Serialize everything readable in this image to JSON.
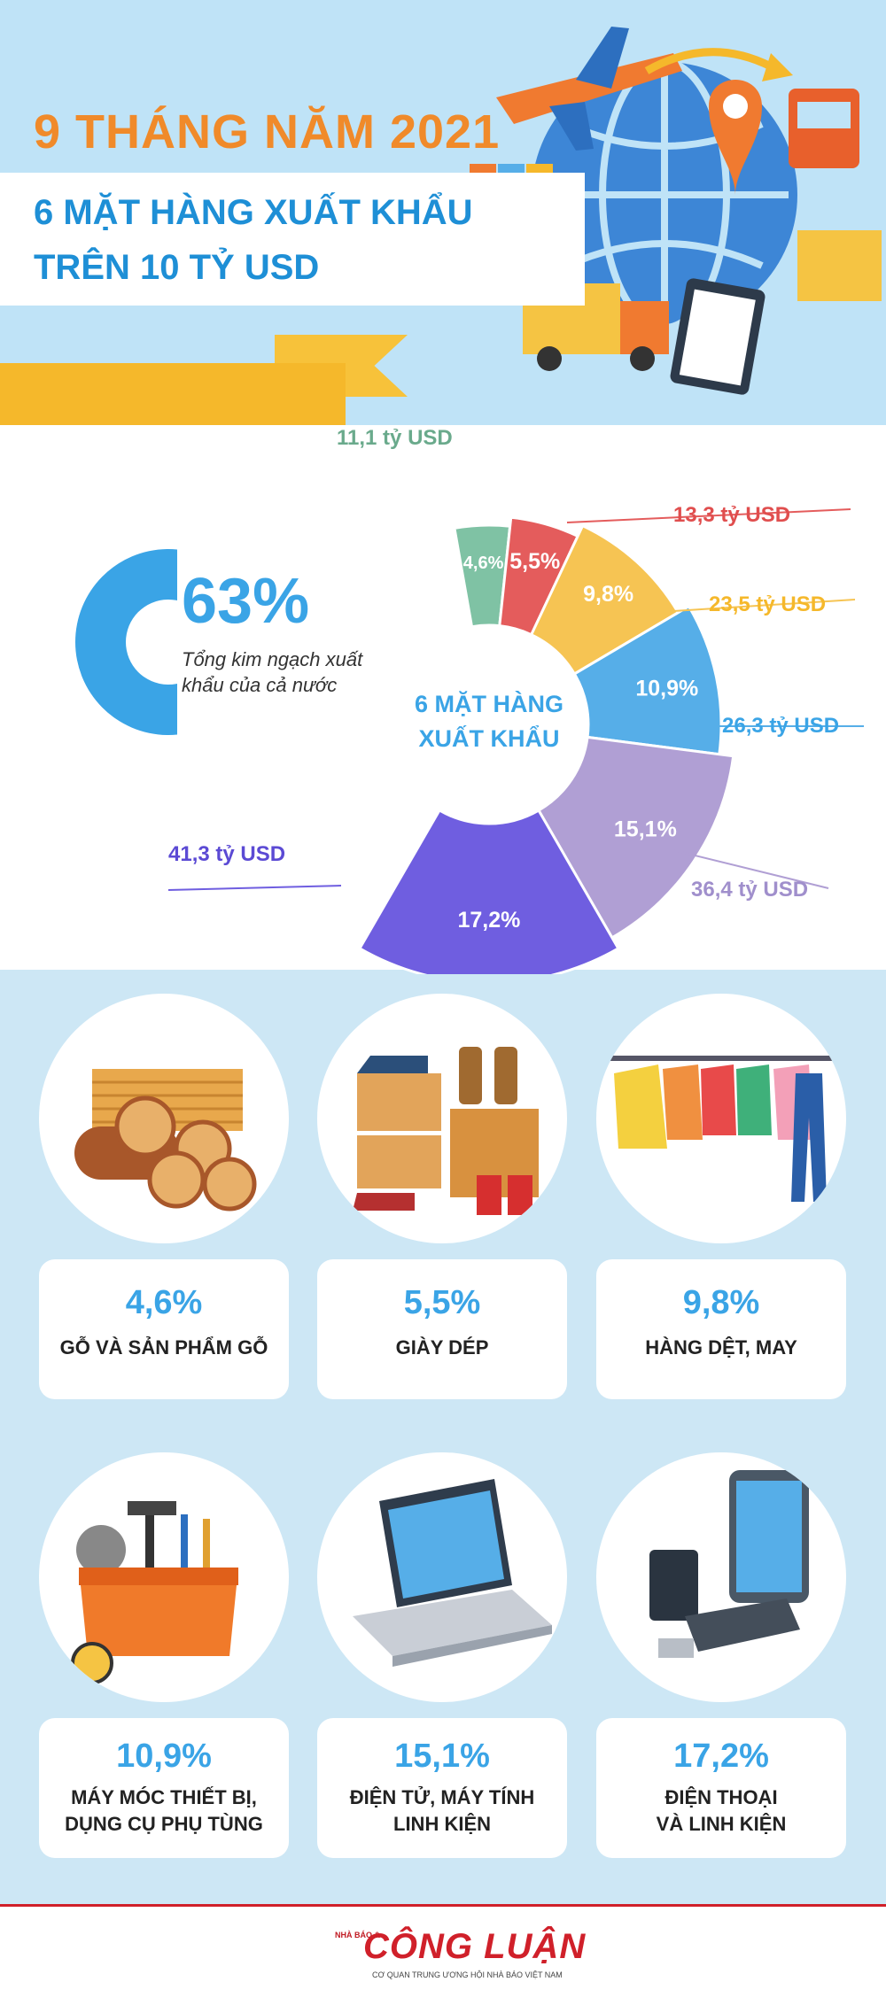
{
  "header": {
    "year_title": "9 THÁNG NĂM 2021",
    "main_title_1": "6 MẶT HÀNG XUẤT KHẨU",
    "main_title_2": "TRÊN 10 TỶ USD"
  },
  "share": {
    "percent": "63%",
    "value": 63,
    "description": "Tổng kim ngạch xuất khẩu của cả nước"
  },
  "donut_center_1": "6 MẶT HÀNG",
  "donut_center_2": "XUẤT KHẨU",
  "chart_data": {
    "type": "pie",
    "title": "",
    "slices": [
      {
        "pct_label": "4,6%",
        "pct": 4.6,
        "value_label": "11,1 tỷ USD",
        "value": 11.1,
        "color": "#7fc2a4"
      },
      {
        "pct_label": "5,5%",
        "pct": 5.5,
        "value_label": "13,3 tỷ USD",
        "value": 13.3,
        "color": "#e45c5c"
      },
      {
        "pct_label": "9,8%",
        "pct": 9.8,
        "value_label": "23,5 tỷ USD",
        "value": 23.5,
        "color": "#f6c453"
      },
      {
        "pct_label": "10,9%",
        "pct": 10.9,
        "value_label": "26,3 tỷ USD",
        "value": 26.3,
        "color": "#56aee8"
      },
      {
        "pct_label": "15,1%",
        "pct": 15.1,
        "value_label": "36,4 tỷ USD",
        "value": 36.4,
        "color": "#b09fd4"
      },
      {
        "pct_label": "17,2%",
        "pct": 17.2,
        "value_label": "41,3 tỷ USD",
        "value": 41.3,
        "color": "#6f5ee0"
      }
    ]
  },
  "categories": [
    {
      "pct": "4,6%",
      "name_1": "GỖ VÀ SẢN PHẨM GỖ",
      "name_2": "",
      "icon": "wood-logs-icon"
    },
    {
      "pct": "5,5%",
      "name_1": "GIÀY DÉP",
      "name_2": "",
      "icon": "shoes-icon"
    },
    {
      "pct": "9,8%",
      "name_1": "HÀNG DỆT, MAY",
      "name_2": "",
      "icon": "clothes-rack-icon"
    },
    {
      "pct": "10,9%",
      "name_1": "MÁY MÓC THIẾT BỊ,",
      "name_2": "DỤNG CỤ PHỤ TÙNG",
      "icon": "toolbox-icon"
    },
    {
      "pct": "15,1%",
      "name_1": "ĐIỆN TỬ, MÁY TÍNH",
      "name_2": "LINH KIỆN",
      "icon": "laptop-icon"
    },
    {
      "pct": "17,2%",
      "name_1": "ĐIỆN THOẠI",
      "name_2": "VÀ LINH KIỆN",
      "icon": "phone-icon"
    }
  ],
  "footer": {
    "logo_small": "NHÀ BÁO &",
    "logo_main": "CÔNG LUẬN",
    "logo_sub": "CƠ QUAN TRUNG ƯƠNG HỘI NHÀ BÁO VIỆT NAM"
  },
  "colors": {
    "accent": "#3aa4e6",
    "orange": "#f08a2a",
    "ribbon": "#f5b82b"
  }
}
